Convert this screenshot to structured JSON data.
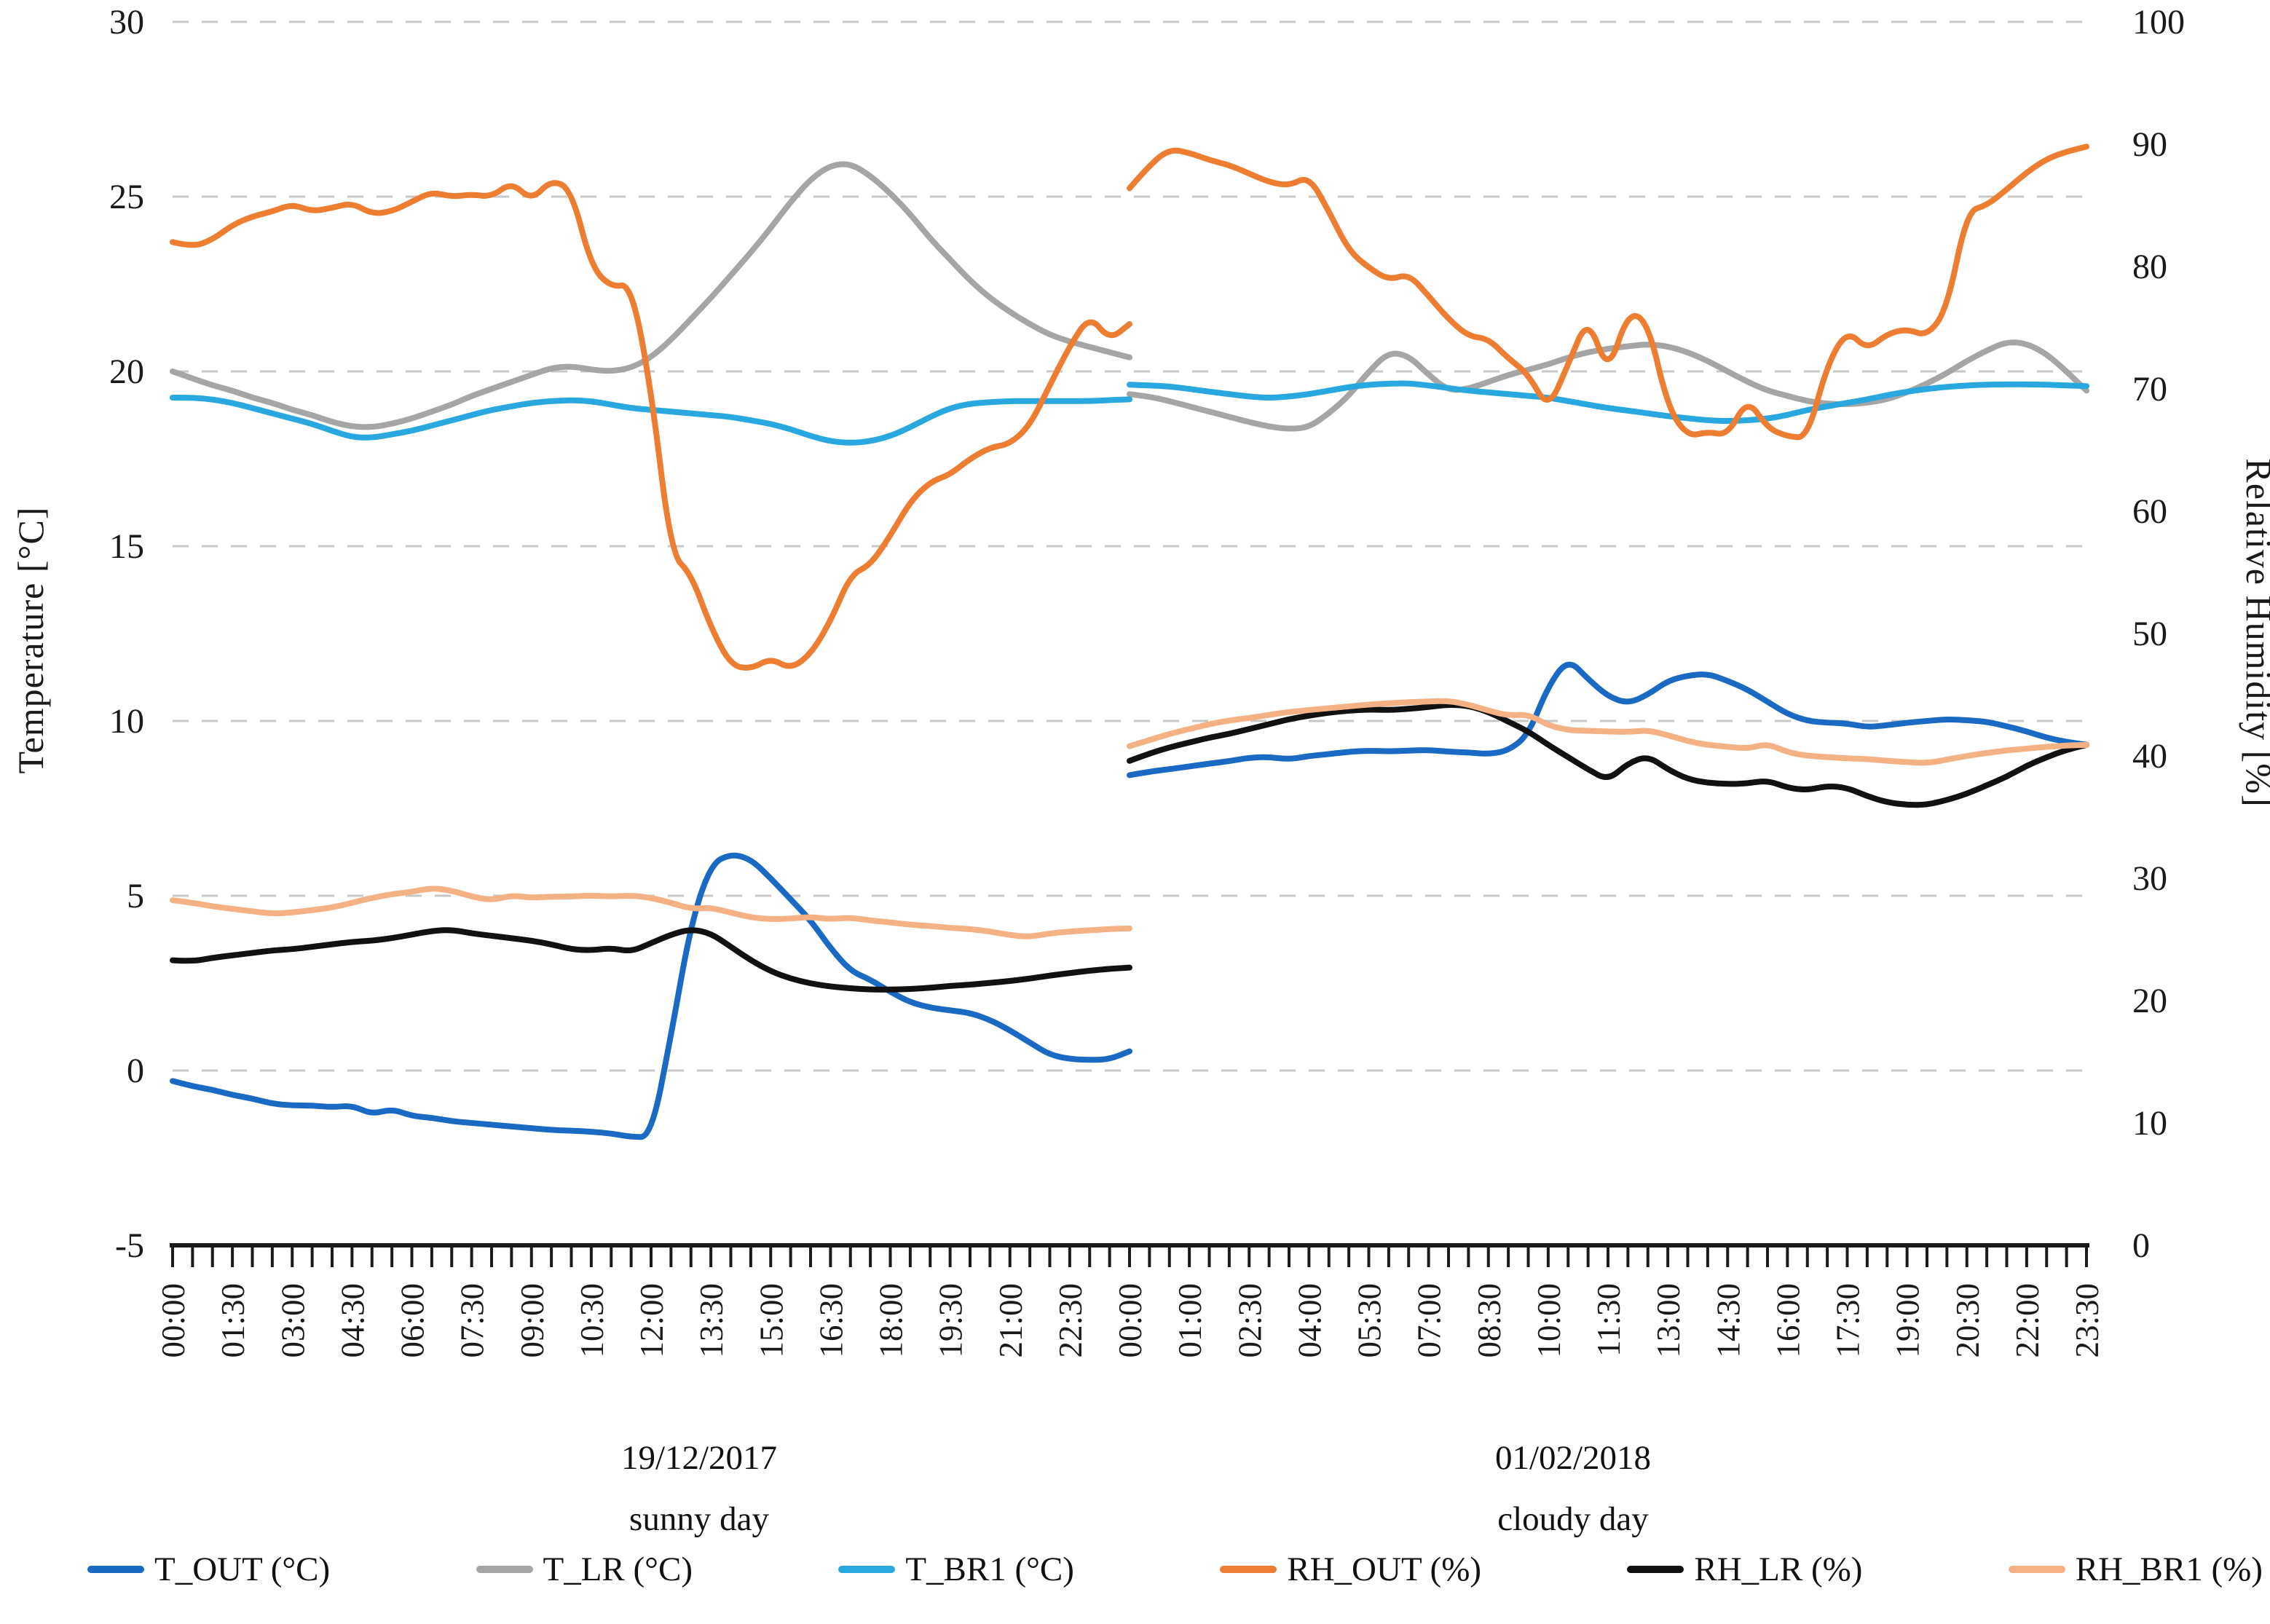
{
  "chart_data": {
    "type": "line",
    "title": "",
    "grid": true,
    "legend_position": "bottom",
    "ylabel_left": "Temperature [°C]",
    "ylabel_right": "Relative Humidity [%]",
    "y_left_range": [
      -5,
      30
    ],
    "y_left_ticks": [
      "30",
      "25",
      "20",
      "15",
      "10",
      "5",
      "0",
      "-5"
    ],
    "y_left_tick_values": [
      30,
      25,
      20,
      15,
      10,
      5,
      0,
      -5
    ],
    "y_right_range": [
      0,
      100
    ],
    "y_right_ticks": [
      "100",
      "90",
      "80",
      "70",
      "60",
      "50",
      "40",
      "30",
      "20",
      "10",
      "0"
    ],
    "y_right_tick_values": [
      100,
      90,
      80,
      70,
      60,
      50,
      40,
      30,
      20,
      10,
      0
    ],
    "gridline_temps": [
      30,
      25,
      20,
      15,
      10,
      5,
      0
    ],
    "x_tick_labels": [
      "00:00",
      "01:30",
      "03:00",
      "04:30",
      "06:00",
      "07:30",
      "09:00",
      "10:30",
      "12:00",
      "13:30",
      "15:00",
      "16:30",
      "18:00",
      "19:30",
      "21:00",
      "22:30",
      "00:00",
      "01:00",
      "02:30",
      "04:00",
      "05:30",
      "07:00",
      "08:30",
      "10:00",
      "11:30",
      "13:00",
      "14:30",
      "16:00",
      "17:30",
      "19:00",
      "20:30",
      "22:00",
      "23:30"
    ],
    "minor_ticks_per_label": 3,
    "sample_interval_minutes": 30,
    "day_groups": [
      {
        "date": "19/12/2017",
        "caption": "sunny day"
      },
      {
        "date": "01/02/2018",
        "caption": "cloudy day"
      }
    ],
    "series": [
      {
        "name": "T_OUT (°C)",
        "axis": "left",
        "color": "#1A6AC4",
        "day1": [
          -0.3,
          -0.45,
          -0.55,
          -0.7,
          -0.8,
          -0.95,
          -1.0,
          -1.0,
          -1.05,
          -1.0,
          -1.25,
          -1.1,
          -1.3,
          -1.35,
          -1.45,
          -1.5,
          -1.55,
          -1.6,
          -1.65,
          -1.7,
          -1.72,
          -1.75,
          -1.8,
          -1.9,
          -1.9,
          1.0,
          4.2,
          5.9,
          6.2,
          6.05,
          5.5,
          4.9,
          4.3,
          3.5,
          2.85,
          2.6,
          2.25,
          1.95,
          1.8,
          1.72,
          1.65,
          1.45,
          1.15,
          0.8,
          0.45,
          0.33,
          0.3,
          0.32,
          0.55
        ],
        "day2": [
          8.45,
          8.55,
          8.62,
          8.7,
          8.78,
          8.85,
          8.95,
          8.97,
          8.9,
          9.0,
          9.05,
          9.12,
          9.15,
          9.13,
          9.15,
          9.17,
          9.12,
          9.1,
          9.05,
          9.15,
          9.6,
          11.0,
          11.78,
          11.2,
          10.7,
          10.5,
          10.75,
          11.15,
          11.3,
          11.35,
          11.15,
          10.9,
          10.55,
          10.2,
          10.0,
          9.95,
          9.93,
          9.82,
          9.88,
          9.95,
          10.0,
          10.05,
          10.02,
          9.98,
          9.85,
          9.7,
          9.52,
          9.4,
          9.32
        ]
      },
      {
        "name": "T_LR (°C)",
        "axis": "left",
        "color": "#A5A5A5",
        "day1": [
          20.0,
          19.8,
          19.6,
          19.45,
          19.25,
          19.1,
          18.9,
          18.75,
          18.55,
          18.42,
          18.4,
          18.5,
          18.65,
          18.85,
          19.05,
          19.3,
          19.5,
          19.7,
          19.9,
          20.1,
          20.15,
          20.05,
          20.0,
          20.1,
          20.4,
          20.9,
          21.5,
          22.1,
          22.75,
          23.4,
          24.1,
          24.85,
          25.5,
          25.9,
          25.95,
          25.6,
          25.1,
          24.5,
          23.8,
          23.2,
          22.6,
          22.1,
          21.7,
          21.35,
          21.05,
          20.85,
          20.7,
          20.55,
          20.4
        ],
        "day2": [
          19.35,
          19.28,
          19.15,
          19.0,
          18.85,
          18.7,
          18.55,
          18.42,
          18.35,
          18.4,
          18.8,
          19.3,
          20.0,
          20.55,
          20.45,
          19.9,
          19.45,
          19.5,
          19.7,
          19.9,
          20.05,
          20.2,
          20.4,
          20.55,
          20.65,
          20.72,
          20.78,
          20.72,
          20.55,
          20.3,
          20.0,
          19.7,
          19.45,
          19.3,
          19.15,
          19.07,
          19.06,
          19.1,
          19.2,
          19.4,
          19.65,
          19.95,
          20.3,
          20.6,
          20.85,
          20.8,
          20.5,
          20.0,
          19.45
        ]
      },
      {
        "name": "T_BR1 (°C)",
        "axis": "left",
        "color": "#29A8E0",
        "day1": [
          19.25,
          19.25,
          19.2,
          19.1,
          18.95,
          18.8,
          18.65,
          18.5,
          18.3,
          18.12,
          18.1,
          18.2,
          18.3,
          18.45,
          18.6,
          18.75,
          18.9,
          19.0,
          19.1,
          19.15,
          19.18,
          19.15,
          19.05,
          18.95,
          18.9,
          18.85,
          18.8,
          18.75,
          18.7,
          18.6,
          18.5,
          18.35,
          18.15,
          18.0,
          17.95,
          18.0,
          18.15,
          18.4,
          18.7,
          18.95,
          19.08,
          19.12,
          19.15,
          19.15,
          19.15,
          19.15,
          19.15,
          19.18,
          19.2
        ],
        "day2": [
          19.62,
          19.6,
          19.57,
          19.5,
          19.42,
          19.35,
          19.28,
          19.24,
          19.28,
          19.35,
          19.45,
          19.55,
          19.62,
          19.65,
          19.66,
          19.6,
          19.52,
          19.45,
          19.4,
          19.35,
          19.3,
          19.25,
          19.15,
          19.05,
          18.95,
          18.88,
          18.8,
          18.72,
          18.66,
          18.6,
          18.58,
          18.6,
          18.65,
          18.75,
          18.9,
          19.0,
          19.1,
          19.2,
          19.32,
          19.42,
          19.5,
          19.56,
          19.6,
          19.62,
          19.63,
          19.63,
          19.62,
          19.6,
          19.58
        ]
      },
      {
        "name": "RH_OUT (%)",
        "axis": "right",
        "color": "#ED7D31",
        "day1": [
          82.0,
          81.6,
          82.2,
          83.4,
          84.1,
          84.5,
          85.1,
          84.5,
          84.8,
          85.2,
          84.3,
          84.5,
          85.3,
          86.1,
          85.7,
          85.9,
          85.7,
          86.9,
          85.4,
          87.1,
          86.3,
          80.0,
          78.3,
          78.6,
          70.0,
          56.5,
          54.9,
          50.5,
          47.4,
          47.1,
          48.0,
          47.1,
          48.3,
          51.0,
          54.8,
          55.6,
          58.0,
          60.8,
          62.4,
          63.0,
          64.3,
          65.2,
          65.5,
          67.0,
          70.3,
          73.5,
          76.0,
          74.0,
          75.3
        ],
        "day2": [
          86.4,
          88.3,
          89.6,
          89.3,
          88.7,
          88.3,
          87.6,
          86.9,
          86.6,
          87.4,
          84.5,
          81.3,
          79.9,
          78.9,
          79.4,
          77.6,
          75.7,
          74.3,
          74.1,
          72.5,
          71.2,
          68.3,
          72.0,
          75.9,
          71.2,
          76.3,
          75.5,
          68.5,
          66.1,
          66.5,
          66.2,
          69.2,
          66.8,
          66.1,
          66.0,
          72.0,
          74.8,
          73.2,
          74.5,
          74.9,
          74.3,
          76.5,
          84.5,
          85.0,
          86.3,
          87.7,
          88.8,
          89.4,
          89.8
        ]
      },
      {
        "name": "RH_LR (%)",
        "axis": "right",
        "color": "#111111",
        "day1": [
          23.3,
          23.2,
          23.5,
          23.7,
          23.9,
          24.1,
          24.2,
          24.4,
          24.6,
          24.8,
          24.9,
          25.1,
          25.4,
          25.7,
          25.8,
          25.5,
          25.3,
          25.1,
          24.9,
          24.6,
          24.2,
          24.1,
          24.3,
          24.0,
          24.7,
          25.4,
          25.85,
          25.5,
          24.4,
          23.3,
          22.4,
          21.8,
          21.4,
          21.15,
          21.0,
          20.9,
          20.9,
          20.95,
          21.05,
          21.2,
          21.3,
          21.45,
          21.6,
          21.8,
          22.05,
          22.25,
          22.45,
          22.6,
          22.7
        ],
        "day2": [
          39.6,
          40.2,
          40.7,
          41.1,
          41.5,
          41.8,
          42.2,
          42.6,
          43.0,
          43.3,
          43.55,
          43.7,
          43.8,
          43.75,
          43.85,
          44.0,
          44.2,
          44.1,
          43.6,
          42.8,
          42.0,
          40.9,
          39.9,
          38.9,
          38.0,
          39.4,
          40.0,
          38.9,
          38.1,
          37.8,
          37.7,
          37.75,
          38.0,
          37.4,
          37.2,
          37.55,
          37.4,
          36.7,
          36.2,
          36.0,
          36.0,
          36.4,
          36.9,
          37.6,
          38.3,
          39.2,
          39.9,
          40.5,
          40.9
        ]
      },
      {
        "name": "RH_BR1 (%)",
        "axis": "right",
        "color": "#F4B183",
        "day1": [
          28.2,
          28.0,
          27.7,
          27.5,
          27.3,
          27.1,
          27.2,
          27.4,
          27.6,
          28.0,
          28.4,
          28.7,
          28.9,
          29.2,
          29.0,
          28.5,
          28.2,
          28.6,
          28.4,
          28.5,
          28.5,
          28.6,
          28.5,
          28.6,
          28.4,
          28.0,
          27.5,
          27.6,
          27.2,
          26.8,
          26.65,
          26.7,
          26.85,
          26.65,
          26.8,
          26.55,
          26.4,
          26.2,
          26.1,
          25.95,
          25.85,
          25.65,
          25.35,
          25.2,
          25.5,
          25.65,
          25.75,
          25.85,
          25.9
        ],
        "day2": [
          40.8,
          41.3,
          41.8,
          42.2,
          42.6,
          42.9,
          43.1,
          43.35,
          43.6,
          43.75,
          43.9,
          44.05,
          44.2,
          44.3,
          44.4,
          44.45,
          44.5,
          44.2,
          43.7,
          43.3,
          43.4,
          42.5,
          42.1,
          42.05,
          42.0,
          41.95,
          42.1,
          41.7,
          41.2,
          40.9,
          40.75,
          40.6,
          41.0,
          40.3,
          40.0,
          39.9,
          39.8,
          39.75,
          39.6,
          39.5,
          39.4,
          39.7,
          40.0,
          40.25,
          40.45,
          40.6,
          40.75,
          40.85,
          40.9
        ]
      }
    ]
  }
}
